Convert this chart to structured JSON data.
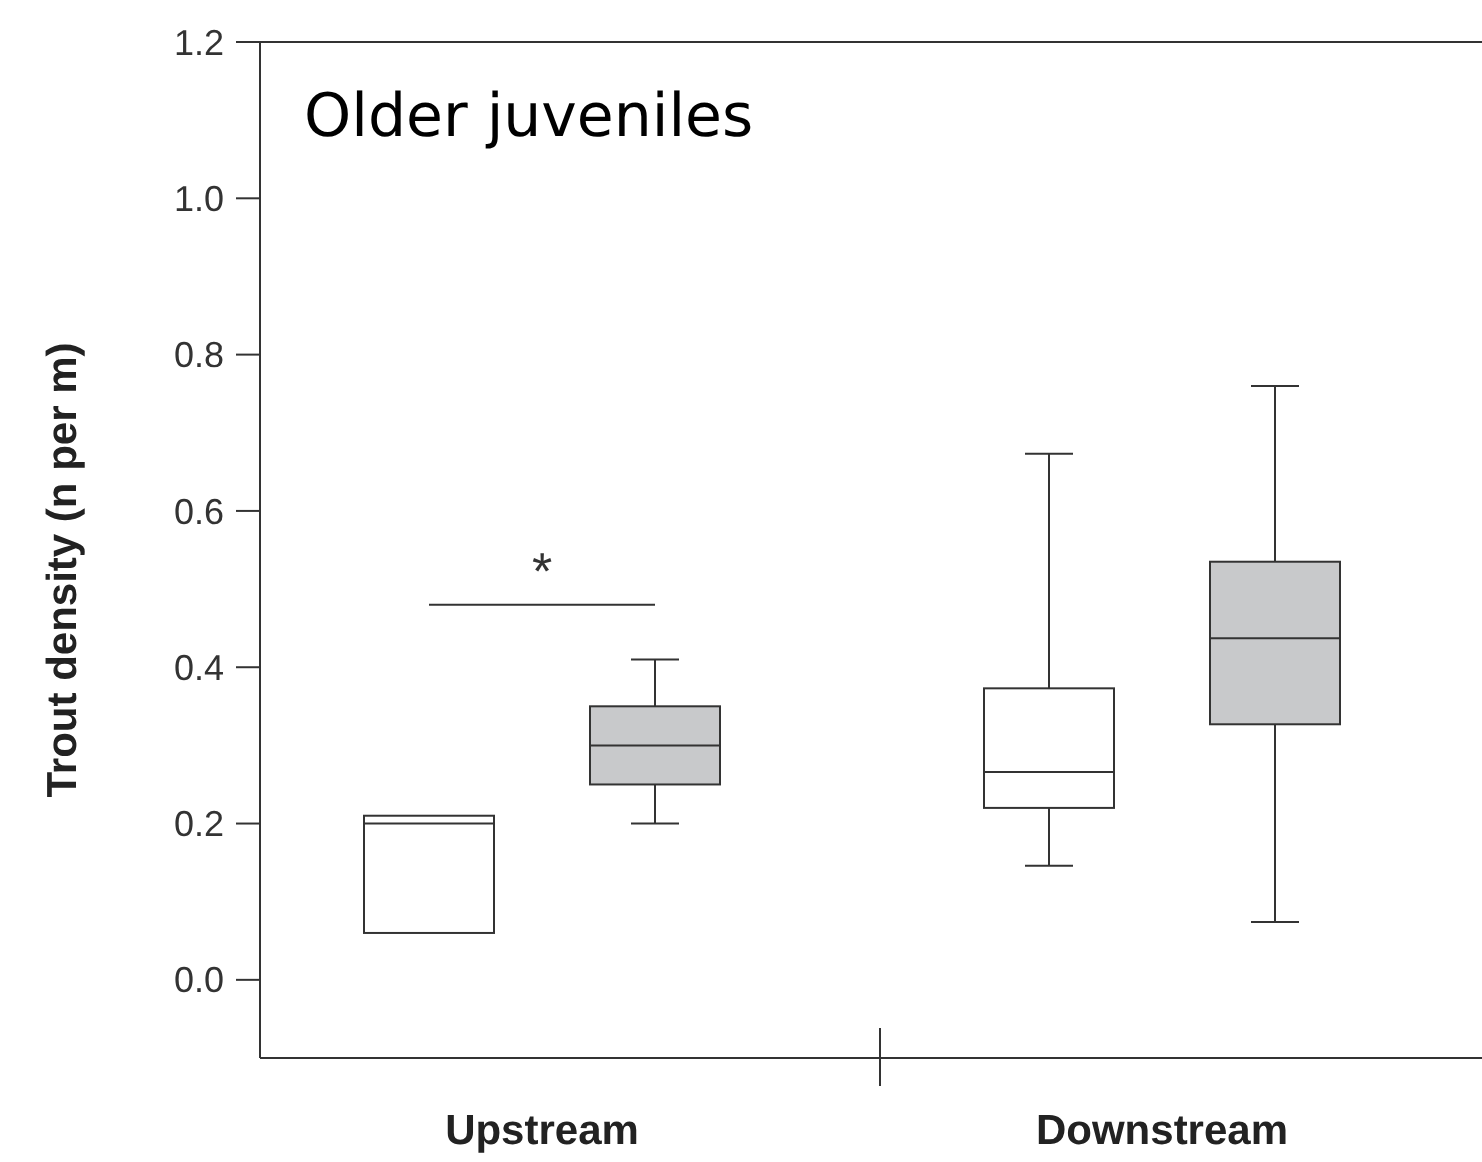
{
  "chart_data": {
    "type": "box",
    "title": "Older juveniles",
    "ylabel": "Trout density (n per m)",
    "categories": [
      "Upstream",
      "Downstream"
    ],
    "ylim": [
      -0.1,
      1.2
    ],
    "yticks": [
      {
        "value": 0,
        "label": "0.0"
      },
      {
        "value": 0.2,
        "label": "0.2"
      },
      {
        "value": 0.4,
        "label": "0.4"
      },
      {
        "value": 0.6,
        "label": "0.6"
      },
      {
        "value": 0.8,
        "label": "0.8"
      },
      {
        "value": 1,
        "label": "1.0"
      },
      {
        "value": 1.2,
        "label": "1.2"
      }
    ],
    "series": [
      {
        "color": "#ffffff",
        "boxes": [
          {
            "low": 0.06,
            "q1": 0.06,
            "median": 0.2,
            "q3": 0.21,
            "high": 0.21
          },
          {
            "low": 0.146,
            "q1": 0.22,
            "median": 0.266,
            "q3": 0.373,
            "high": 0.673
          }
        ]
      },
      {
        "color": "#c8c9cb",
        "boxes": [
          {
            "low": 0.2,
            "q1": 0.25,
            "median": 0.3,
            "q3": 0.35,
            "high": 0.41
          },
          {
            "low": 0.074,
            "q1": 0.327,
            "median": 0.437,
            "q3": 0.535,
            "high": 0.76
          }
        ]
      }
    ],
    "annotations": [
      "*"
    ]
  }
}
